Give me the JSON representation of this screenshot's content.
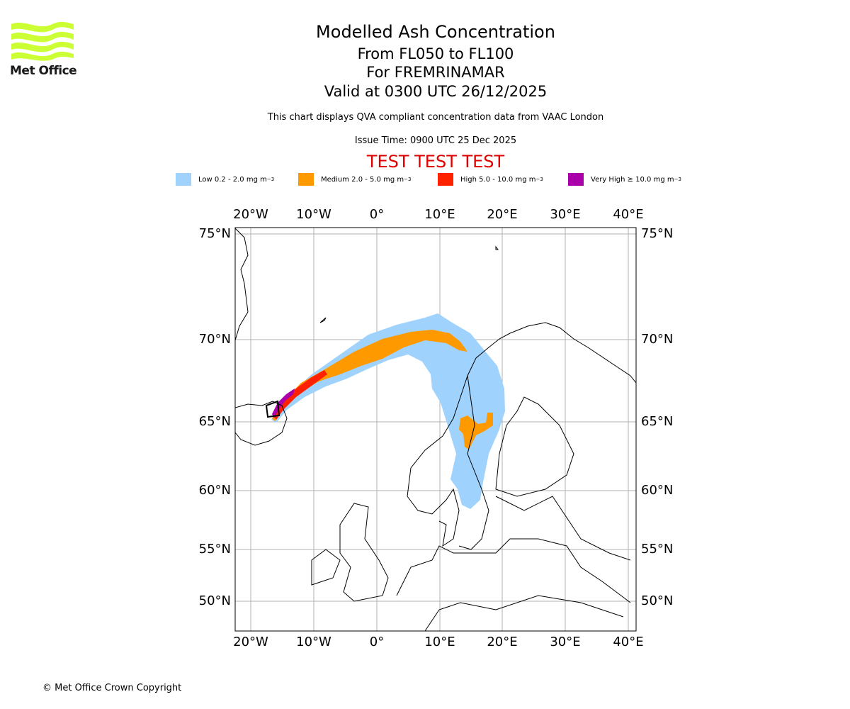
{
  "header": {
    "logo_text": "Met Office",
    "title": "Modelled Ash Concentration",
    "levels": "From FL050 to FL100",
    "volcano": "For FREMRINAMAR",
    "valid": "Valid at 0300 UTC 26/12/2025",
    "note": "This chart displays QVA compliant concentration data from VAAC London",
    "issue_time": "Issue Time: 0900 UTC 25 Dec 2025",
    "test_banner": "TEST TEST TEST"
  },
  "legend": [
    {
      "label": "Low 0.2 - 2.0 mg m",
      "sup": "−3",
      "color": "#a0d2fe"
    },
    {
      "label": "Medium 2.0 - 5.0 mg m",
      "sup": "−3",
      "color": "#ff9900"
    },
    {
      "label": "High 5.0 - 10.0 mg m",
      "sup": "−3",
      "color": "#ff2200"
    },
    {
      "label": "Very High  ≥  10.0 mg m",
      "sup": "−3",
      "color": "#aa00aa"
    }
  ],
  "map": {
    "lon_labels": [
      "20°W",
      "10°W",
      "0°",
      "10°E",
      "20°E",
      "30°E",
      "40°E"
    ],
    "lat_labels": [
      "75°N",
      "70°N",
      "65°N",
      "60°N",
      "55°N",
      "50°N"
    ]
  },
  "footer": "© Met Office Crown Copyright"
}
